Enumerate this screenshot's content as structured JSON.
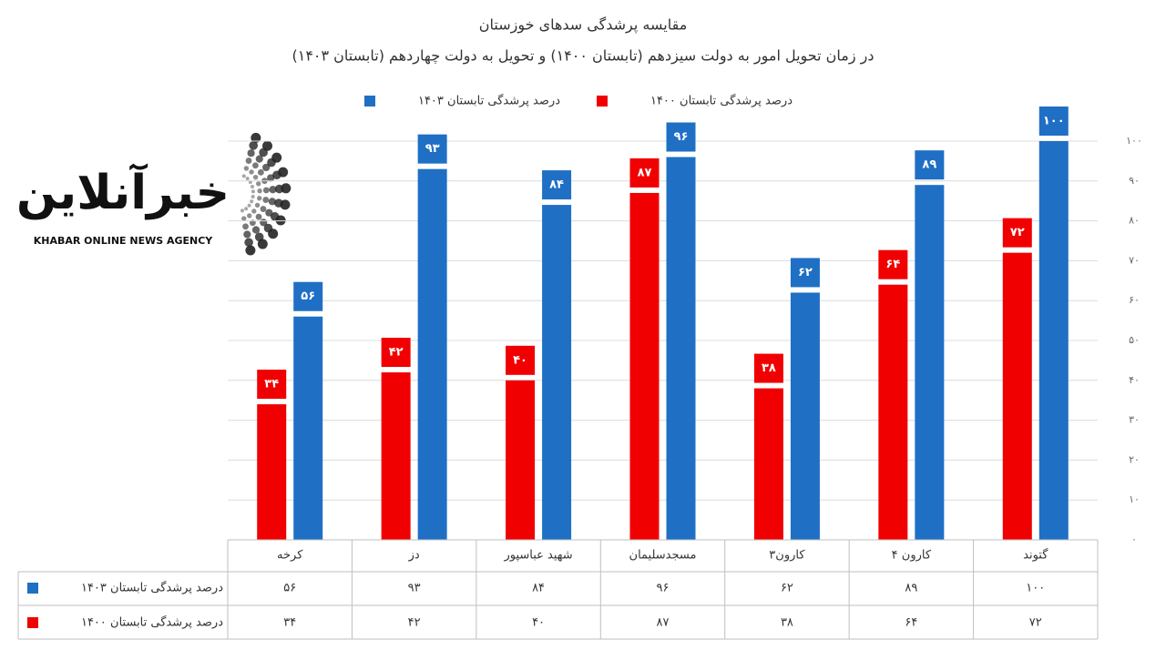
{
  "logo": {
    "name": "خبرآنلاین",
    "tagline": "KHABAR ONLINE NEWS AGENCY"
  },
  "chart_data": {
    "type": "bar",
    "title": "مقایسه پرشدگی سدهای خوزستان",
    "subtitle": "در زمان تحویل امور به دولت سیزدهم (تابستان ۱۴۰۰) و تحویل به دولت چهاردهم (تابستان ۱۴۰۳)",
    "categories": [
      "کرخه",
      "دز",
      "شهید عباسپور",
      "مسجدسلیمان",
      "کارون۳",
      "کارون ۴",
      "گتوند"
    ],
    "series": [
      {
        "name": "درصد پرشدگی  تابستان ۱۴۰۰",
        "color": "#f00000",
        "values": [
          34,
          42,
          40,
          87,
          38,
          64,
          72
        ],
        "value_labels": [
          "۳۴",
          "۴۲",
          "۴۰",
          "۸۷",
          "۳۸",
          "۶۴",
          "۷۲"
        ]
      },
      {
        "name": "درصد پرشدگی تابستان ۱۴۰۳",
        "color": "#1f6fc5",
        "values": [
          56,
          93,
          84,
          96,
          62,
          89,
          100
        ],
        "value_labels": [
          "۵۶",
          "۹۳",
          "۸۴",
          "۹۶",
          "۶۲",
          "۸۹",
          "۱۰۰"
        ]
      }
    ],
    "ylim": [
      0,
      100
    ],
    "yticks": [
      {
        "value": 0,
        "label": "۰"
      },
      {
        "value": 10,
        "label": "۱۰"
      },
      {
        "value": 20,
        "label": "۲۰"
      },
      {
        "value": 30,
        "label": "۳۰"
      },
      {
        "value": 40,
        "label": "۴۰"
      },
      {
        "value": 50,
        "label": "۵۰"
      },
      {
        "value": 60,
        "label": "۶۰"
      },
      {
        "value": 70,
        "label": "۷۰"
      },
      {
        "value": 80,
        "label": "۸۰"
      },
      {
        "value": 90,
        "label": "۹۰"
      },
      {
        "value": 100,
        "label": "۱۰۰"
      }
    ],
    "grid": true
  }
}
